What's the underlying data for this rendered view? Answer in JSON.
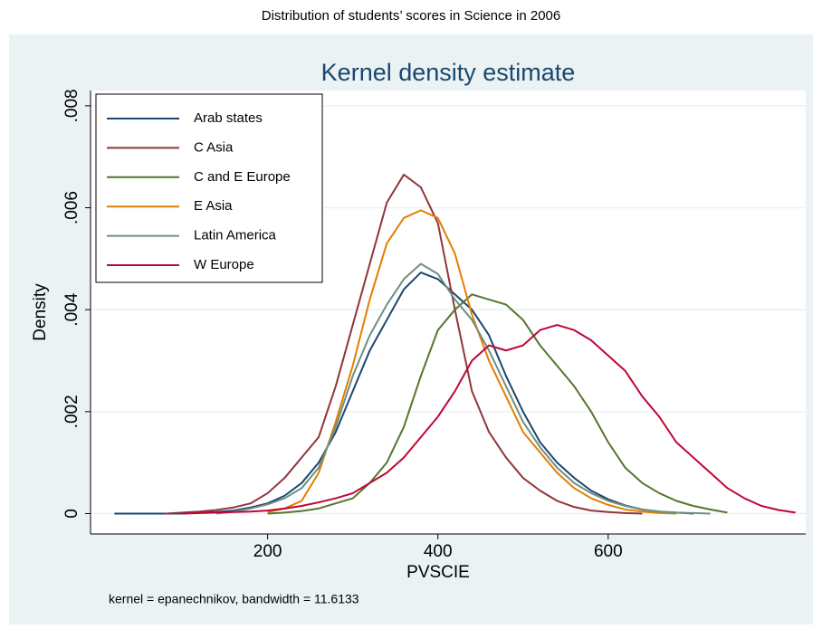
{
  "page_title": "Distribution of students’ scores in Science in 2006",
  "chart_data": {
    "type": "line",
    "title": "Kernel density estimate",
    "xlabel": "PVSCIE",
    "ylabel": "Density",
    "note": "kernel = epanechnikov, bandwidth = 11.6133",
    "xlim": [
      -8,
      832
    ],
    "ylim": [
      -0.0004,
      0.0083
    ],
    "xticks": [
      200,
      400,
      600
    ],
    "yticks": [
      0,
      {
        "value": 0.002,
        "label": ".002"
      },
      {
        "value": 0.004,
        "label": ".004"
      },
      {
        "value": 0.006,
        "label": ".006"
      },
      {
        "value": 0.008,
        "label": ".008"
      }
    ],
    "grid": true,
    "legend": "upper-left",
    "x": [
      0,
      20,
      40,
      60,
      80,
      100,
      120,
      140,
      160,
      180,
      200,
      220,
      240,
      260,
      280,
      300,
      320,
      340,
      360,
      380,
      400,
      420,
      440,
      460,
      480,
      500,
      520,
      540,
      560,
      580,
      600,
      620,
      640,
      660,
      680,
      700,
      720,
      740,
      760,
      780,
      800,
      820,
      840
    ],
    "series": [
      {
        "name": "Arab states",
        "color": "#1a476f",
        "values": [
          null,
          0,
          0,
          0,
          0,
          0,
          2e-05,
          3e-05,
          6e-05,
          0.00012,
          0.0002,
          0.00035,
          0.0006,
          0.001,
          0.0016,
          0.0024,
          0.0032,
          0.0038,
          0.0044,
          0.00473,
          0.0046,
          0.0043,
          0.004,
          0.0035,
          0.0027,
          0.002,
          0.0014,
          0.001,
          0.0007,
          0.00045,
          0.00028,
          0.00016,
          8e-05,
          4e-05,
          2e-05,
          0,
          null,
          null,
          null,
          null,
          null,
          null,
          null
        ]
      },
      {
        "name": "C Asia",
        "color": "#90353b",
        "values": [
          null,
          null,
          null,
          null,
          0,
          2e-05,
          4e-05,
          7e-05,
          0.00012,
          0.0002,
          0.0004,
          0.0007,
          0.0011,
          0.0015,
          0.0025,
          0.0037,
          0.0049,
          0.0061,
          0.00665,
          0.0064,
          0.0057,
          0.004,
          0.0024,
          0.0016,
          0.0011,
          0.0007,
          0.00045,
          0.00025,
          0.00013,
          6e-05,
          3e-05,
          1e-05,
          0,
          null,
          null,
          null,
          null,
          null,
          null,
          null,
          null,
          null,
          null
        ]
      },
      {
        "name": "C and E Europe",
        "color": "#55752f",
        "values": [
          null,
          null,
          null,
          null,
          null,
          null,
          null,
          null,
          null,
          null,
          0,
          2e-05,
          5e-05,
          0.0001,
          0.0002,
          0.0003,
          0.0006,
          0.001,
          0.0017,
          0.0027,
          0.0036,
          0.004,
          0.0043,
          0.0042,
          0.0041,
          0.0038,
          0.0033,
          0.0029,
          0.0025,
          0.002,
          0.0014,
          0.0009,
          0.0006,
          0.0004,
          0.00025,
          0.00015,
          8e-05,
          2e-05,
          null,
          null,
          null,
          null,
          null
        ]
      },
      {
        "name": "E Asia",
        "color": "#e37e00",
        "values": [
          null,
          null,
          null,
          null,
          null,
          null,
          null,
          null,
          null,
          null,
          3e-05,
          0.0001,
          0.00025,
          0.0008,
          0.0018,
          0.0029,
          0.0042,
          0.0053,
          0.0058,
          0.00595,
          0.0058,
          0.0051,
          0.0039,
          0.003,
          0.0023,
          0.0016,
          0.0012,
          0.0008,
          0.0005,
          0.0003,
          0.00017,
          8e-05,
          4e-05,
          1e-05,
          0,
          null,
          null,
          null,
          null,
          null,
          null,
          null,
          null
        ]
      },
      {
        "name": "Latin America",
        "color": "#6e8e84",
        "values": [
          null,
          null,
          null,
          null,
          null,
          null,
          null,
          0,
          4e-05,
          0.0001,
          0.00018,
          0.0003,
          0.0005,
          0.0009,
          0.0017,
          0.0027,
          0.0035,
          0.0041,
          0.0046,
          0.0049,
          0.0047,
          0.0042,
          0.0038,
          0.0032,
          0.0025,
          0.0018,
          0.0013,
          0.0009,
          0.0006,
          0.0004,
          0.00025,
          0.00015,
          8e-05,
          4e-05,
          2e-05,
          1e-05,
          0,
          null,
          null,
          null,
          null,
          null,
          null
        ]
      },
      {
        "name": "W Europe",
        "color": "#c10534",
        "values": [
          null,
          null,
          null,
          null,
          null,
          0,
          1e-05,
          2e-05,
          3e-05,
          4e-05,
          6e-05,
          0.0001,
          0.00015,
          0.00022,
          0.0003,
          0.0004,
          0.0006,
          0.0008,
          0.0011,
          0.0015,
          0.0019,
          0.0024,
          0.003,
          0.0033,
          0.0032,
          0.0033,
          0.0036,
          0.0037,
          0.0036,
          0.0034,
          0.0031,
          0.0028,
          0.0023,
          0.0019,
          0.0014,
          0.0011,
          0.0008,
          0.0005,
          0.0003,
          0.00015,
          7e-05,
          2e-05,
          null
        ]
      }
    ]
  }
}
